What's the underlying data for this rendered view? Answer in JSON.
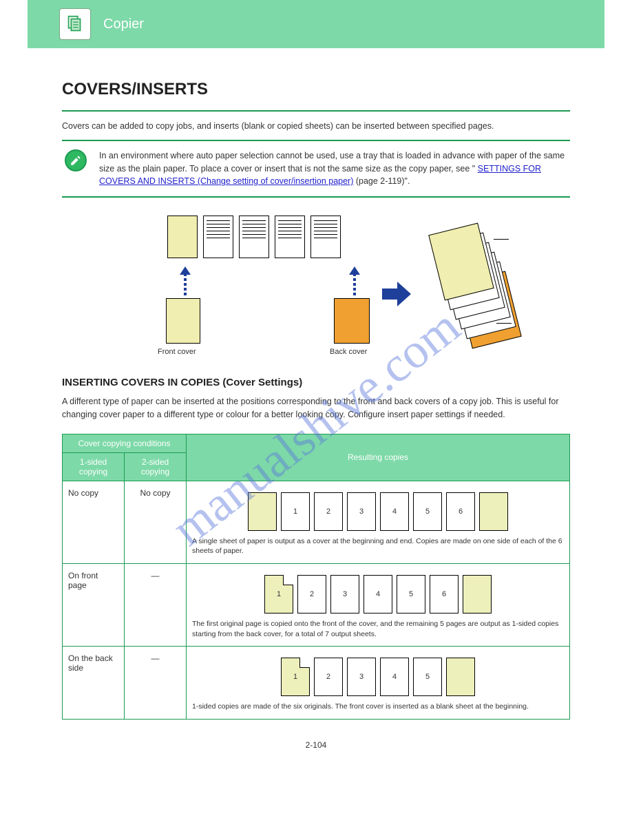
{
  "watermark": "manualshive.com",
  "topbar": {
    "label": "Copier"
  },
  "section": {
    "title": "COVERS/INSERTS",
    "intro": "Covers can be added to copy jobs, and inserts (blank or copied sheets) can be inserted between specified pages.",
    "noteText": "In an environment where auto paper selection cannot be used, use a tray that is loaded in advance with paper of the same size as the plain paper. To place a cover or insert that is not the same size as the copy paper, see \"",
    "noteLinkText": "SETTINGS FOR COVERS AND INSERTS (Change setting of cover/insertion paper)",
    "noteAfter": " (page 2-119)\"."
  },
  "diagram": {
    "labelFront": "Front cover",
    "labelBack": "Back cover"
  },
  "coversMode": {
    "title": "INSERTING COVERS IN COPIES (Cover Settings)",
    "desc": "A different type of paper can be inserted at the positions corresponding to the front and back covers of a copy job. This is useful for changing cover paper to a different type or colour for a better looking copy.\nConfigure insert paper settings if needed."
  },
  "table": {
    "headers": {
      "groupLeft": "Cover copying conditions",
      "col1": "1-sided copying",
      "col2": "2-sided copying",
      "right": "Resulting copies"
    },
    "rows": [
      {
        "c1": "No copy",
        "c2": "No copy",
        "sheetLabels": [
          "",
          "1",
          "2",
          "3",
          "4",
          "5",
          "6",
          ""
        ],
        "yellowIdx": [
          0,
          7
        ],
        "foldIdx": [],
        "caption": "A single sheet of paper is output as a cover at the beginning and end. Copies are made on one side of each of the 6 sheets of paper."
      },
      {
        "c1": "On front page",
        "c2": "—",
        "sheetLabels": [
          "1",
          "2",
          "3",
          "4",
          "5",
          "6",
          ""
        ],
        "yellowIdx": [
          0,
          6
        ],
        "foldIdx": [
          0
        ],
        "caption": "The first original page is copied onto the front of the cover, and the remaining 5 pages are output as 1-sided copies starting from the back cover, for a total of 7 output sheets."
      },
      {
        "c1": "On the back side",
        "c2": "—",
        "sheetLabels": [
          "1",
          "2",
          "3",
          "4",
          "5",
          ""
        ],
        "yellowIdx": [
          0,
          5
        ],
        "foldIdx": [
          0
        ],
        "caption": "1-sided copies are made of the six originals. The front cover is inserted as a blank sheet at the beginning."
      }
    ]
  },
  "colors": {
    "headerGreen": "#7dd9a8",
    "borderGreen": "#1a9a4e",
    "yellow": "#f0eeb0",
    "orange": "#f0a030",
    "arrowBlue": "#1e3f9a",
    "link": "#2020cc"
  },
  "pageNumber": "2-104"
}
